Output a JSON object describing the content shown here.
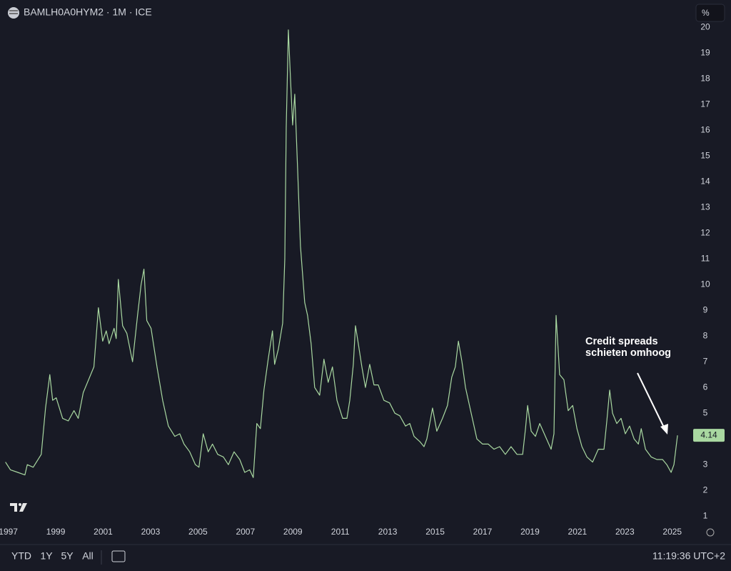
{
  "chart_data": {
    "type": "line",
    "title": "BAMLH0A0HYM2 · 1M · ICE",
    "x": [
      1996.88,
      1997.09,
      1997.4,
      1997.7,
      1997.8,
      1998.05,
      1998.39,
      1998.57,
      1998.75,
      1998.87,
      1999.02,
      1999.29,
      1999.53,
      1999.77,
      1999.95,
      2000.16,
      2000.34,
      2000.61,
      2000.8,
      2000.98,
      2001.13,
      2001.25,
      2001.46,
      2001.55,
      2001.64,
      2001.82,
      2002.0,
      2002.24,
      2002.45,
      2002.6,
      2002.72,
      2002.84,
      2003.02,
      2003.27,
      2003.51,
      2003.75,
      2004.02,
      2004.23,
      2004.41,
      2004.65,
      2004.89,
      2005.04,
      2005.22,
      2005.43,
      2005.61,
      2005.83,
      2006.07,
      2006.28,
      2006.52,
      2006.76,
      2006.97,
      2007.18,
      2007.33,
      2007.48,
      2007.63,
      2007.78,
      2007.96,
      2008.14,
      2008.23,
      2008.39,
      2008.57,
      2008.66,
      2008.72,
      2008.81,
      2008.9,
      2008.99,
      2009.08,
      2009.2,
      2009.32,
      2009.5,
      2009.62,
      2009.77,
      2009.92,
      2010.13,
      2010.31,
      2010.49,
      2010.67,
      2010.86,
      2011.1,
      2011.28,
      2011.4,
      2011.55,
      2011.64,
      2011.76,
      2011.91,
      2012.06,
      2012.24,
      2012.42,
      2012.6,
      2012.84,
      2013.08,
      2013.3,
      2013.51,
      2013.75,
      2013.93,
      2014.11,
      2014.35,
      2014.53,
      2014.65,
      2014.89,
      2015.07,
      2015.31,
      2015.52,
      2015.7,
      2015.85,
      2015.98,
      2016.13,
      2016.28,
      2016.52,
      2016.76,
      2017.0,
      2017.24,
      2017.48,
      2017.72,
      2017.96,
      2018.2,
      2018.45,
      2018.69,
      2018.81,
      2018.9,
      2019.05,
      2019.23,
      2019.41,
      2019.65,
      2019.89,
      2020.01,
      2020.1,
      2020.25,
      2020.43,
      2020.61,
      2020.8,
      2020.98,
      2021.19,
      2021.4,
      2021.64,
      2021.88,
      2022.12,
      2022.24,
      2022.36,
      2022.48,
      2022.66,
      2022.84,
      2023.02,
      2023.2,
      2023.39,
      2023.57,
      2023.69,
      2023.87,
      2024.11,
      2024.35,
      2024.59,
      2024.77,
      2024.95,
      2025.07,
      2025.22
    ],
    "series": [
      {
        "color": "#a9d8a1",
        "values": [
          3.1,
          2.8,
          2.7,
          2.6,
          3.0,
          2.9,
          3.4,
          5.2,
          6.5,
          5.5,
          5.6,
          4.8,
          4.7,
          5.1,
          4.8,
          5.8,
          6.2,
          6.8,
          9.1,
          7.8,
          8.2,
          7.7,
          8.3,
          7.9,
          10.2,
          8.4,
          8.1,
          7.0,
          8.8,
          10.0,
          10.6,
          8.6,
          8.3,
          6.8,
          5.5,
          4.5,
          4.1,
          4.2,
          3.8,
          3.5,
          3.0,
          2.9,
          4.2,
          3.5,
          3.8,
          3.4,
          3.3,
          3.0,
          3.5,
          3.2,
          2.7,
          2.8,
          2.5,
          4.6,
          4.4,
          5.9,
          7.1,
          8.2,
          6.9,
          7.5,
          8.5,
          11.0,
          16.1,
          19.9,
          18.0,
          16.2,
          17.4,
          14.5,
          11.5,
          9.3,
          8.8,
          7.7,
          6.0,
          5.7,
          7.1,
          6.2,
          6.8,
          5.5,
          4.8,
          4.8,
          5.5,
          6.9,
          8.4,
          7.7,
          6.8,
          6.0,
          6.9,
          6.1,
          6.1,
          5.5,
          5.4,
          5.0,
          4.9,
          4.5,
          4.6,
          4.1,
          3.9,
          3.7,
          4.0,
          5.2,
          4.3,
          4.8,
          5.3,
          6.4,
          6.8,
          7.8,
          7.0,
          6.0,
          5.0,
          4.0,
          3.8,
          3.8,
          3.6,
          3.7,
          3.4,
          3.7,
          3.4,
          3.4,
          4.4,
          5.3,
          4.3,
          4.1,
          4.6,
          4.1,
          3.6,
          4.2,
          8.8,
          6.5,
          6.3,
          5.1,
          5.3,
          4.4,
          3.7,
          3.3,
          3.1,
          3.6,
          3.6,
          4.7,
          5.9,
          5.0,
          4.6,
          4.8,
          4.2,
          4.5,
          4.0,
          3.8,
          4.4,
          3.6,
          3.3,
          3.2,
          3.2,
          3.0,
          2.7,
          3.0,
          4.14
        ]
      }
    ],
    "xlim": [
      1996.65,
      2025.7
    ],
    "xticks": [
      1997,
      1999,
      2001,
      2003,
      2005,
      2007,
      2009,
      2011,
      2013,
      2015,
      2017,
      2019,
      2021,
      2023,
      2025
    ],
    "ylim": [
      0.7,
      20.2
    ],
    "yticks": [
      1,
      2,
      3,
      4,
      5,
      6,
      7,
      8,
      9,
      10,
      11,
      12,
      13,
      14,
      15,
      16,
      17,
      18,
      19,
      20
    ],
    "grid": false,
    "annotation": [
      "Credit spreads",
      "schieten omhoog"
    ]
  },
  "ui": {
    "unit_button": "%",
    "ranges": [
      "YTD",
      "1Y",
      "5Y",
      "All"
    ],
    "clock": "11:19:36 UTC+2"
  }
}
